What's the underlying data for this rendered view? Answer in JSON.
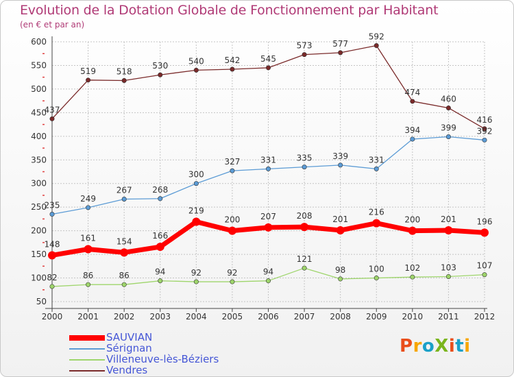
{
  "header": {
    "title": "Evolution de la Dotation Globale de Fonctionnement par Habitant",
    "subtitle": "(en € et par an)"
  },
  "logo": {
    "text": "ProXiti",
    "colors": [
      "#e94e1b",
      "#f7a600",
      "#1aa0c8",
      "#7ab51d",
      "#e94e1b",
      "#1aa0c8",
      "#f7a600"
    ]
  },
  "chart_data": {
    "type": "line",
    "x": [
      "2000",
      "2001",
      "2002",
      "2003",
      "2004",
      "2005",
      "2006",
      "2007",
      "2008",
      "2009",
      "2010",
      "2011",
      "2012"
    ],
    "ylim": [
      50,
      600
    ],
    "yticks": [
      50,
      100,
      150,
      200,
      250,
      300,
      350,
      400,
      450,
      500,
      550,
      600
    ],
    "grid": true,
    "legend_position": "bottom-left",
    "series": [
      {
        "name": "SAUVIAN",
        "color": "#ff0000",
        "emphasis": true,
        "values": [
          148,
          161,
          154,
          166,
          219,
          200,
          207,
          208,
          201,
          216,
          200,
          201,
          196
        ]
      },
      {
        "name": "Sérignan",
        "color": "#5b9bd5",
        "values": [
          235,
          249,
          267,
          268,
          300,
          327,
          331,
          335,
          339,
          331,
          394,
          399,
          392
        ]
      },
      {
        "name": "Villeneuve-lès-Béziers",
        "color": "#9ed56b",
        "values": [
          82,
          86,
          86,
          94,
          92,
          92,
          94,
          121,
          98,
          100,
          102,
          103,
          107
        ]
      },
      {
        "name": "Vendres",
        "color": "#7a2a2a",
        "values": [
          437,
          519,
          518,
          530,
          540,
          542,
          545,
          573,
          577,
          592,
          474,
          460,
          416
        ]
      }
    ]
  }
}
